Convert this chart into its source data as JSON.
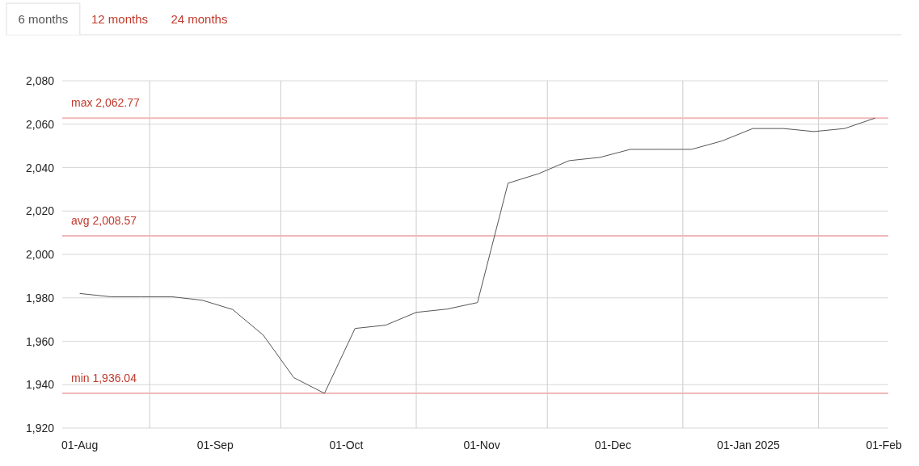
{
  "chart_data": {
    "type": "line",
    "annotations": [
      "6 months",
      "12 months",
      "24 months"
    ],
    "x": [
      "2024-08-01",
      "2024-08-08",
      "2024-08-15",
      "2024-08-22",
      "2024-08-29",
      "2024-09-05",
      "2024-09-12",
      "2024-09-19",
      "2024-09-26",
      "2024-10-03",
      "2024-10-10",
      "2024-10-17",
      "2024-10-24",
      "2024-10-31",
      "2024-11-07",
      "2024-11-14",
      "2024-11-21",
      "2024-11-28",
      "2024-12-05",
      "2024-12-12",
      "2024-12-19",
      "2024-12-26",
      "2025-01-02",
      "2025-01-09",
      "2025-01-16",
      "2025-01-23",
      "2025-01-30"
    ],
    "series": [
      {
        "color": "#555555",
        "values": [
          1982.0,
          1980.5,
          1980.5,
          1980.5,
          1978.9,
          1974.6,
          1962.8,
          1943.2,
          1936.0,
          1965.9,
          1967.4,
          1973.3,
          1974.8,
          1977.8,
          2032.8,
          2037.2,
          2043.2,
          2044.7,
          2048.4,
          2048.4,
          2048.4,
          2052.3,
          2058.0,
          2058.0,
          2056.6,
          2058.0,
          2062.8
        ]
      }
    ],
    "xlim": [
      "2024-07-28",
      "2025-02-02"
    ],
    "xticks": [
      {
        "value": "2024-08-01",
        "label": "01-Aug"
      },
      {
        "value": "2024-08-17",
        "label": null
      },
      {
        "value": "2024-09-01",
        "label": "01-Sep"
      },
      {
        "value": "2024-09-16",
        "label": null
      },
      {
        "value": "2024-10-01",
        "label": "01-Oct"
      },
      {
        "value": "2024-10-17",
        "label": null
      },
      {
        "value": "2024-11-01",
        "label": "01-Nov"
      },
      {
        "value": "2024-11-16",
        "label": null
      },
      {
        "value": "2024-12-01",
        "label": "01-Dec"
      },
      {
        "value": "2024-12-17",
        "label": null
      },
      {
        "value": "2025-01-01",
        "label": "01-Jan 2025"
      },
      {
        "value": "2025-01-17",
        "label": null
      },
      {
        "value": "2025-02-01",
        "label": "01-Feb"
      }
    ],
    "ylim": [
      1920,
      2080
    ],
    "yticks": [
      {
        "value": 1920,
        "label": "1,920"
      },
      {
        "value": 1940,
        "label": "1,940"
      },
      {
        "value": 1960,
        "label": "1,960"
      },
      {
        "value": 1980,
        "label": "1,980"
      },
      {
        "value": 2000,
        "label": "2,000"
      },
      {
        "value": 2020,
        "label": "2,020"
      },
      {
        "value": 2040,
        "label": "2,040"
      },
      {
        "value": 2060,
        "label": "2,060"
      },
      {
        "value": 2080,
        "label": "2,080"
      }
    ],
    "ref_lines": [
      {
        "axis": "y",
        "value": 2062.77,
        "label": "max 2,062.77",
        "color": "#f0b8b8"
      },
      {
        "axis": "y",
        "value": 2008.57,
        "label": "avg 2,008.57",
        "color": "#f0b8b8"
      },
      {
        "axis": "y",
        "value": 1936.04,
        "label": "min 1,936.04",
        "color": "#f0b8b8"
      }
    ],
    "grid": true,
    "marker": "none",
    "line_style": "solid"
  }
}
